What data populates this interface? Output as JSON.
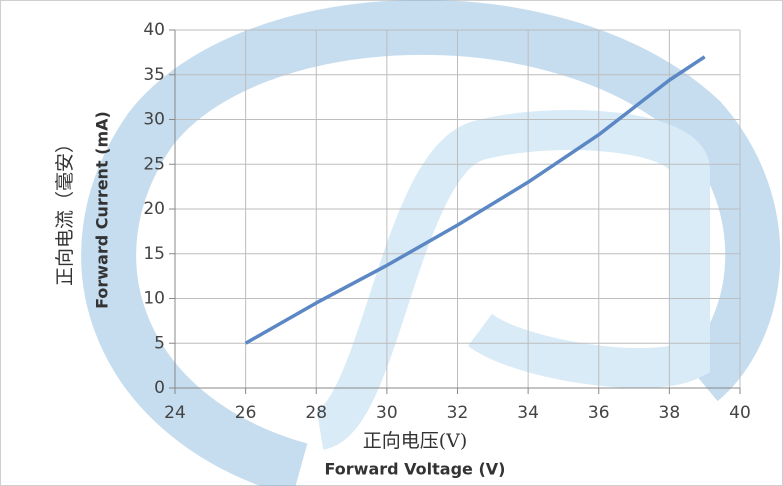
{
  "chart_data": {
    "type": "line",
    "xlabel": [
      "正向电压(V)",
      "Forward Voltage (V)"
    ],
    "ylabel": [
      "正向电流（毫安）",
      "Forward Current (mA)"
    ],
    "x": [
      26,
      28,
      30,
      32,
      34,
      36,
      38,
      39
    ],
    "series": [
      {
        "name": "Forward Current",
        "color": "#5b87c5",
        "values": [
          5,
          9.5,
          13.7,
          18.2,
          23,
          28.3,
          34.4,
          37
        ]
      }
    ],
    "xlim": [
      24,
      40
    ],
    "xticks": [
      24,
      26,
      28,
      30,
      32,
      34,
      36,
      38,
      40
    ],
    "ylim": [
      0,
      40
    ],
    "yticks": [
      0,
      5,
      10,
      15,
      20,
      25,
      30,
      35,
      40
    ],
    "grid": true
  }
}
